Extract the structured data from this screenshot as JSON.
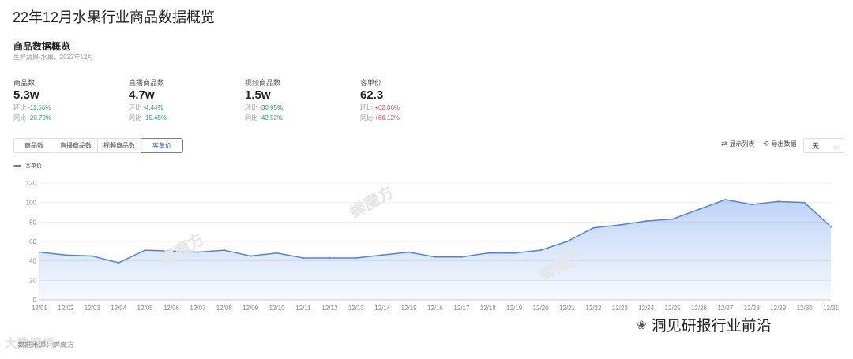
{
  "page_title": "22年12月水果行业商品数据概览",
  "section": {
    "title": "商品数据概览",
    "subtitle": "生鲜蔬果-水果，2022年12月"
  },
  "metrics": [
    {
      "label": "商品数",
      "value": "5.3w",
      "mom_label": "环比",
      "mom": "-11.56%",
      "yoy_label": "同比",
      "yoy": "-20.79%",
      "mom_dir": "down",
      "yoy_dir": "down"
    },
    {
      "label": "直播商品数",
      "value": "4.7w",
      "mom_label": "环比",
      "mom": "-4.44%",
      "yoy_label": "同比",
      "yoy": "-15.45%",
      "mom_dir": "down",
      "yoy_dir": "down"
    },
    {
      "label": "视频商品数",
      "value": "1.5w",
      "mom_label": "环比",
      "mom": "-30.95%",
      "yoy_label": "同比",
      "yoy": "-42.52%",
      "mom_dir": "down",
      "yoy_dir": "down"
    },
    {
      "label": "客单价",
      "value": "62.3",
      "mom_label": "环比",
      "mom": "+62.06%",
      "yoy_label": "同比",
      "yoy": "+86.12%",
      "mom_dir": "up",
      "yoy_dir": "up"
    }
  ],
  "tabs": [
    "商品数",
    "直播商品数",
    "视频商品数",
    "客单价"
  ],
  "active_tab": "客单价",
  "tools": {
    "list_label": "显示列表",
    "export_label": "导出数据",
    "period_value": "天"
  },
  "watermark_text": "蝉魔方",
  "footer": {
    "left_brand": "大数跨境",
    "source": "数据来源：蝉魔方",
    "right_brand": "洞见研报行业前沿"
  },
  "colors": {
    "accent": "#4b84e6",
    "down": "#2aa86b",
    "up": "#e8474a"
  },
  "chart_data": {
    "type": "area",
    "legend": "客单价",
    "x": [
      "12/01",
      "12/02",
      "12/03",
      "12/04",
      "12/05",
      "12/06",
      "12/07",
      "12/08",
      "12/09",
      "12/10",
      "12/11",
      "12/12",
      "12/13",
      "12/14",
      "12/15",
      "12/16",
      "12/17",
      "12/18",
      "12/19",
      "12/20",
      "12/21",
      "12/22",
      "12/23",
      "12/24",
      "12/25",
      "12/26",
      "12/27",
      "12/28",
      "12/29",
      "12/30",
      "12/31"
    ],
    "series": [
      {
        "name": "客单价",
        "values": [
          49,
          46,
          45,
          38,
          51,
          50,
          49,
          51,
          45,
          48,
          43,
          43,
          43,
          46,
          49,
          44,
          44,
          48,
          48,
          51,
          60,
          74,
          77,
          81,
          83,
          93,
          103,
          98,
          101,
          100,
          75
        ]
      }
    ],
    "ylim": [
      0,
      120
    ],
    "yticks": [
      0,
      20,
      40,
      60,
      80,
      100,
      120
    ],
    "grid": true,
    "legend_position": "top-left"
  }
}
